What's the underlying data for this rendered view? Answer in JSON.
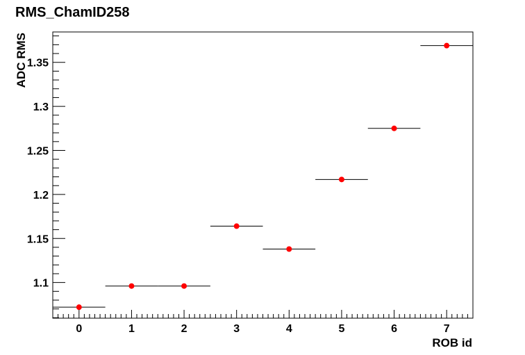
{
  "chart_data": {
    "type": "scatter",
    "title": "RMS_ChamID258",
    "xlabel": "ROB id",
    "ylabel": "ADC RMS",
    "xlim": [
      -0.5,
      7.5
    ],
    "ylim": [
      1.0595,
      1.3845
    ],
    "x_ticks": [
      0,
      1,
      2,
      3,
      4,
      5,
      6,
      7
    ],
    "y_ticks": [
      1.1,
      1.15,
      1.2,
      1.25,
      1.3,
      1.35
    ],
    "y_tick_labels": [
      "1.1",
      "1.15",
      "1.2",
      "1.25",
      "1.3",
      "1.35"
    ],
    "x_error_half_width": 0.5,
    "points": [
      {
        "x": 0,
        "y": 1.072
      },
      {
        "x": 1,
        "y": 1.096
      },
      {
        "x": 2,
        "y": 1.096
      },
      {
        "x": 3,
        "y": 1.164
      },
      {
        "x": 4,
        "y": 1.138
      },
      {
        "x": 5,
        "y": 1.217
      },
      {
        "x": 6,
        "y": 1.275
      },
      {
        "x": 7,
        "y": 1.369
      }
    ],
    "marker_color": "#ff0000",
    "errorbar_color": "#000000",
    "grid": false,
    "legend": "none"
  }
}
